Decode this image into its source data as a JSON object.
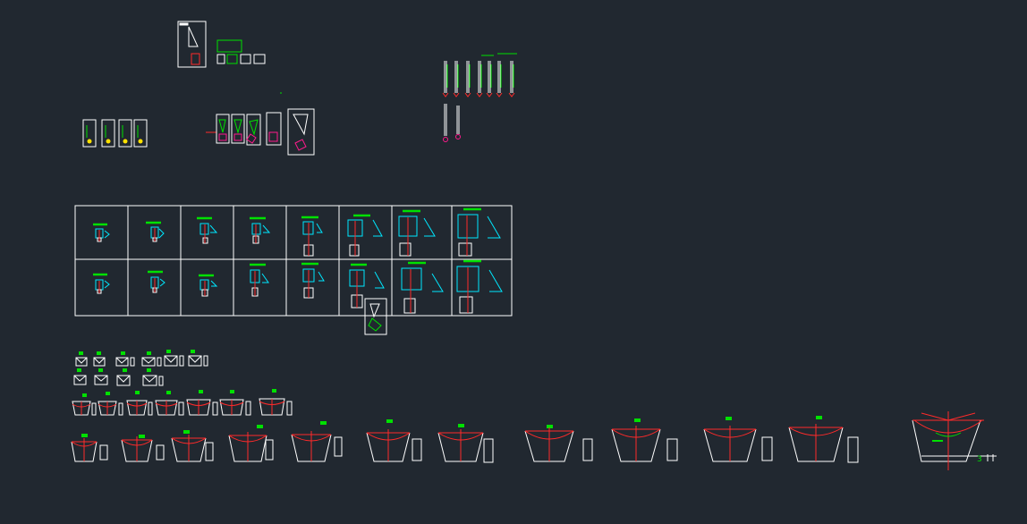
{
  "app": {
    "kind": "cad-model-space"
  },
  "colors": {
    "background": "#212830",
    "white": "#ffffff",
    "green": "#00e000",
    "cyan": "#00e8ff",
    "red": "#ff2a2a",
    "magenta": "#ff1a8c",
    "yellow": "#ffe100"
  },
  "drawing": {
    "groups": [
      "title-block-top",
      "small-sheets-left",
      "magenta-detail-sheets",
      "vertical-section-strips",
      "detail-table-2x8",
      "small-profile-rows",
      "channel-cross-sections",
      "large-section-right"
    ],
    "table": {
      "rows": 2,
      "cols": 8
    },
    "channel_sections_count": 11
  },
  "texts": {
    "dimension_label": "3"
  }
}
